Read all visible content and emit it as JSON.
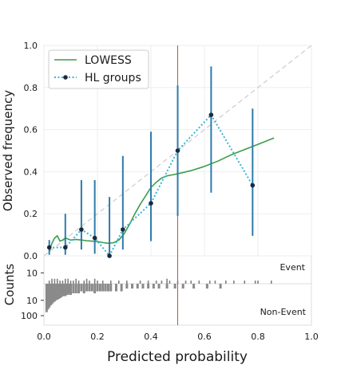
{
  "chart_data": {
    "type": "line",
    "xlabel": "Predicted probability",
    "ylabel_top": "Observed frequency",
    "ylabel_bottom": "Counts",
    "xlim": [
      0,
      1
    ],
    "ylim": [
      0,
      1
    ],
    "x_ticks": [
      "0.0",
      "0.2",
      "0.4",
      "0.6",
      "0.8",
      "1.0"
    ],
    "y_ticks": [
      "0.0",
      "0.2",
      "0.4",
      "0.6",
      "0.8",
      "1.0"
    ],
    "grid": true,
    "legend_placement": "top-left",
    "threshold_x": 0.5,
    "series": [
      {
        "name": "LOWESS",
        "color": "#3a9e4a",
        "x": [
          0.02,
          0.03,
          0.04,
          0.05,
          0.06,
          0.07,
          0.08,
          0.09,
          0.1,
          0.12,
          0.14,
          0.16,
          0.18,
          0.2,
          0.22,
          0.24,
          0.26,
          0.28,
          0.3,
          0.32,
          0.34,
          0.36,
          0.38,
          0.4,
          0.42,
          0.44,
          0.46,
          0.48,
          0.5,
          0.55,
          0.6,
          0.65,
          0.7,
          0.75,
          0.8,
          0.86
        ],
        "y": [
          0.02,
          0.06,
          0.085,
          0.095,
          0.07,
          0.075,
          0.085,
          0.08,
          0.075,
          0.078,
          0.075,
          0.072,
          0.07,
          0.068,
          0.063,
          0.06,
          0.062,
          0.075,
          0.105,
          0.15,
          0.2,
          0.245,
          0.285,
          0.325,
          0.35,
          0.37,
          0.38,
          0.385,
          0.39,
          0.405,
          0.425,
          0.45,
          0.48,
          0.505,
          0.53,
          0.56
        ]
      },
      {
        "name": "HL groups",
        "color": "#3ab4d8",
        "x": [
          0.02,
          0.08,
          0.14,
          0.19,
          0.245,
          0.295,
          0.4,
          0.5,
          0.625,
          0.78
        ],
        "y": [
          0.04,
          0.04,
          0.125,
          0.085,
          0.0,
          0.125,
          0.25,
          0.5,
          0.67,
          0.335
        ],
        "ci_low": [
          0.005,
          0.005,
          0.03,
          0.01,
          0.0,
          0.03,
          0.07,
          0.19,
          0.3,
          0.095
        ],
        "ci_high": [
          0.075,
          0.2,
          0.36,
          0.36,
          0.28,
          0.475,
          0.59,
          0.81,
          0.9,
          0.7
        ]
      }
    ],
    "counts": {
      "event_label": "Event",
      "nonevent_label": "Non-Event",
      "event_ticks": [
        "10"
      ],
      "nonevent_ticks": [
        "10",
        "100"
      ],
      "event_x": [
        0.02,
        0.03,
        0.04,
        0.05,
        0.06,
        0.07,
        0.08,
        0.09,
        0.1,
        0.11,
        0.12,
        0.13,
        0.15,
        0.16,
        0.17,
        0.19,
        0.2,
        0.22,
        0.25,
        0.28,
        0.31,
        0.36,
        0.39,
        0.42,
        0.44,
        0.46,
        0.47,
        0.5,
        0.53,
        0.55,
        0.58,
        0.62,
        0.64,
        0.68,
        0.71,
        0.75,
        0.79,
        0.8,
        0.85
      ],
      "event_h": [
        1,
        2,
        2,
        2,
        1,
        1,
        2,
        2,
        1,
        1,
        2,
        1,
        1,
        2,
        1,
        2,
        1,
        1,
        1,
        1,
        1,
        1,
        1,
        1,
        1,
        2,
        1,
        1,
        1,
        1,
        1,
        1,
        1,
        1,
        1,
        1,
        1,
        1,
        1
      ],
      "nonevent_x": [
        0.01,
        0.015,
        0.02,
        0.025,
        0.03,
        0.035,
        0.04,
        0.045,
        0.05,
        0.055,
        0.06,
        0.065,
        0.07,
        0.075,
        0.08,
        0.085,
        0.09,
        0.095,
        0.1,
        0.11,
        0.12,
        0.13,
        0.14,
        0.15,
        0.16,
        0.17,
        0.18,
        0.19,
        0.2,
        0.21,
        0.22,
        0.23,
        0.24,
        0.25,
        0.27,
        0.29,
        0.31,
        0.33,
        0.35,
        0.37,
        0.39,
        0.41,
        0.43,
        0.46,
        0.49,
        0.52,
        0.56,
        0.61,
        0.66
      ],
      "nonevent_h": [
        60,
        40,
        30,
        22,
        18,
        14,
        12,
        10,
        9,
        8,
        7,
        6,
        5,
        5,
        5,
        4,
        4,
        3,
        4,
        3,
        3,
        3,
        2,
        3,
        2,
        2,
        2,
        3,
        2,
        2,
        2,
        2,
        2,
        2,
        2,
        2,
        1,
        1,
        1,
        1,
        1,
        1,
        1,
        1,
        1,
        1,
        1,
        1,
        1
      ]
    }
  }
}
